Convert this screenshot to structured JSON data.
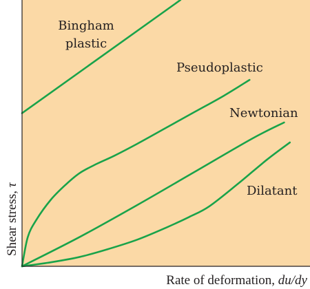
{
  "chart_data": {
    "type": "line",
    "title": "",
    "xlabel": "Rate of deformation, ",
    "xlabel_math": "du/dy",
    "ylabel": "Shear stress, ",
    "ylabel_math": "τ",
    "xlim": [
      0,
      100
    ],
    "ylim": [
      0,
      100
    ],
    "grid": false,
    "colors": {
      "background": "#fbd9a6",
      "curve": "#19a34a",
      "axis": "#231f20",
      "text": "#231f20"
    },
    "series": [
      {
        "name": "Bingham\nplastic",
        "x": [
          0,
          55
        ],
        "y": [
          57.5,
          100
        ]
      },
      {
        "name": "Pseudoplastic",
        "x": [
          0,
          2,
          5,
          10,
          15,
          20,
          26,
          32,
          40,
          50,
          60,
          70,
          79
        ],
        "y": [
          0,
          11,
          17.5,
          25,
          30.5,
          35,
          38.5,
          41.5,
          46,
          52,
          58,
          64,
          70
        ]
      },
      {
        "name": "Newtonian",
        "x": [
          0,
          20,
          40,
          60,
          80,
          91
        ],
        "y": [
          0,
          11,
          23,
          35.5,
          48,
          54
        ]
      },
      {
        "name": "Dilatant",
        "x": [
          0,
          10,
          20,
          30,
          40,
          50,
          58,
          65,
          75,
          85,
          93
        ],
        "y": [
          0,
          1.5,
          3.5,
          6.5,
          10,
          14.5,
          18.5,
          22.5,
          31,
          40,
          46.5
        ]
      }
    ]
  }
}
